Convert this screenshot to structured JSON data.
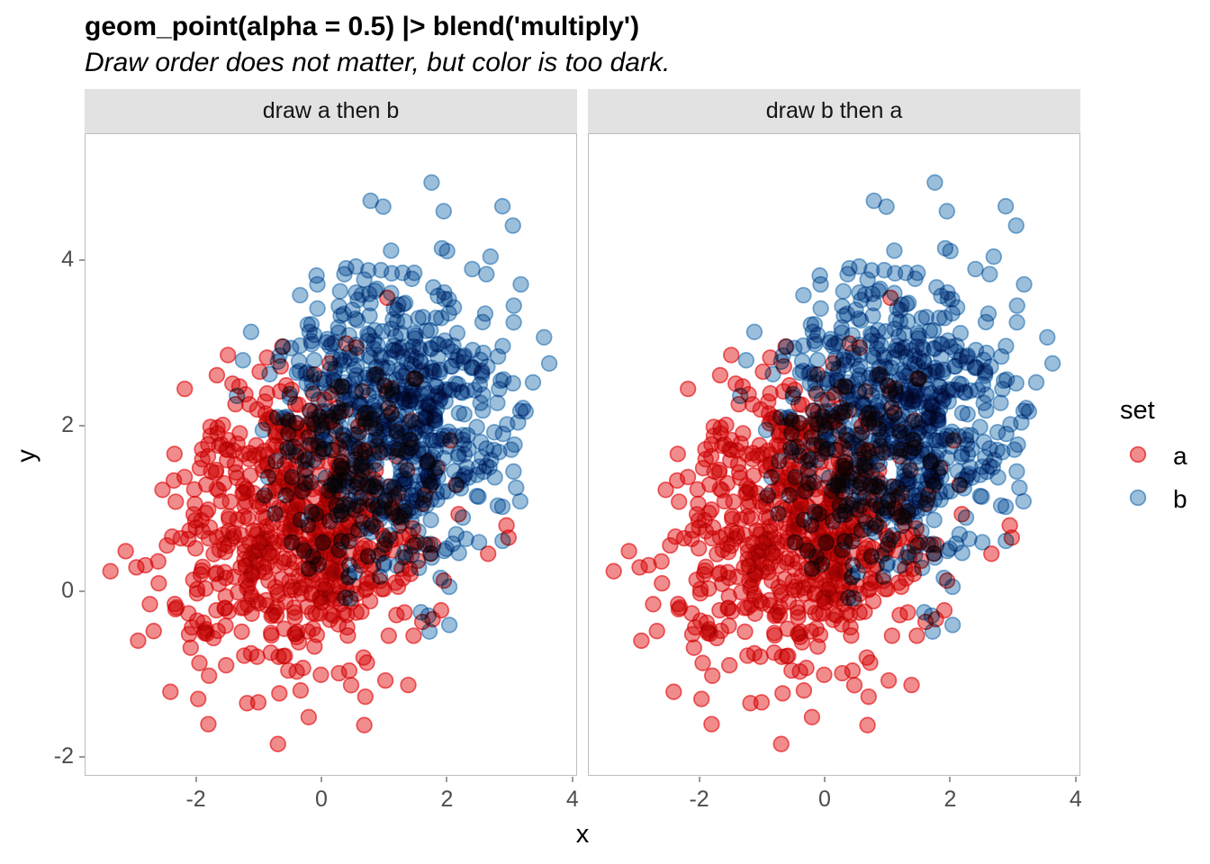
{
  "title": "geom_point(alpha = 0.5) |> blend('multiply')",
  "subtitle": "Draw order does not matter, but color is too dark.",
  "facets": [
    {
      "label": "draw a then b",
      "draw_order": [
        "a",
        "b"
      ]
    },
    {
      "label": "draw b then a",
      "draw_order": [
        "b",
        "a"
      ]
    }
  ],
  "axes": {
    "x": {
      "title": "x",
      "ticks": [
        -2,
        0,
        2,
        4
      ],
      "domain": [
        -3.773,
        4.075
      ]
    },
    "y": {
      "title": "y",
      "ticks": [
        -2,
        0,
        2,
        4
      ],
      "domain": [
        -2.228,
        5.533
      ]
    }
  },
  "legend": {
    "title": "set",
    "entries": [
      {
        "label": "a",
        "color": "#E41A1C"
      },
      {
        "label": "b",
        "color": "#377EB8"
      }
    ]
  },
  "style": {
    "point_alpha": 0.5,
    "blend_mode": "multiply",
    "point_radius": 8.3,
    "point_stroke_width": 1.7,
    "point_stroke_alpha": 0.7,
    "legend_stroke_alpha": 0.75,
    "strip_bg": "#E2E2E2",
    "panel_border": "#BDBDBD",
    "tick_color": "#9A9A9A",
    "tick_label_color": "#4D4D4D"
  },
  "chart_data": {
    "type": "scatter",
    "xlabel": "x",
    "ylabel": "y",
    "x_ticks": [
      -2,
      0,
      2,
      4
    ],
    "y_ticks": [
      -2,
      0,
      2,
      4
    ],
    "clip": {
      "x": [
        -3.45,
        3.78
      ],
      "y": [
        -1.95,
        5.25
      ]
    },
    "series": [
      {
        "name": "a",
        "color": "#E41A1C",
        "n": 700,
        "distribution": "gaussian",
        "mean": [
          -0.3,
          0.85
        ],
        "sd": [
          1.0,
          0.92
        ],
        "seed": 101
      },
      {
        "name": "b",
        "color": "#377EB8",
        "n": 700,
        "distribution": "gaussian",
        "mean": [
          1.1,
          2.1
        ],
        "sd": [
          0.9,
          0.85
        ],
        "seed": 202
      }
    ],
    "note_identical_panels": "both facets show the same two point sets; only draw order differs"
  }
}
